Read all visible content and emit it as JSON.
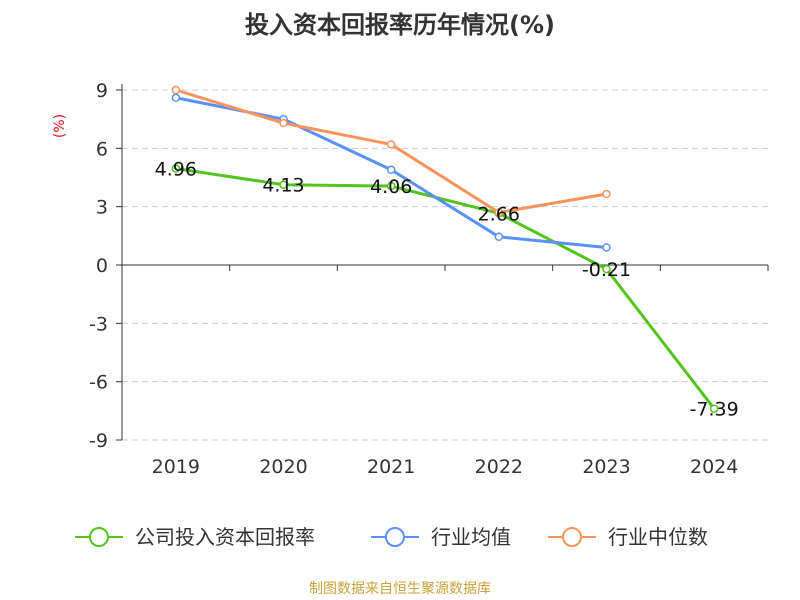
{
  "chart_data": {
    "type": "line",
    "title": "投入资本回报率历年情况(%)",
    "ylabel": "(%)",
    "ylim": [
      -9,
      9
    ],
    "yticks": [
      9,
      6,
      3,
      0,
      -3,
      -6,
      -9
    ],
    "categories": [
      "2019",
      "2020",
      "2021",
      "2022",
      "2023",
      "2024"
    ],
    "grid": true,
    "legend_position": "bottom",
    "series": [
      {
        "name": "公司投入资本回报率",
        "color": "#52c41a",
        "values": [
          4.96,
          4.13,
          4.06,
          2.66,
          -0.21,
          -7.39
        ],
        "labels": true
      },
      {
        "name": "行业均值",
        "color": "#5b8ff9",
        "values": [
          8.6,
          7.5,
          4.9,
          1.45,
          0.9,
          null
        ],
        "labels": false
      },
      {
        "name": "行业中位数",
        "color": "#f7945c",
        "values": [
          9.0,
          7.3,
          6.2,
          2.7,
          3.65,
          null
        ],
        "labels": false
      }
    ],
    "data_labels": [
      "4.96",
      "4.13",
      "4.06",
      "2.66",
      "-0.21",
      "-7.39"
    ],
    "source": "制图数据来自恒生聚源数据库",
    "colors": {
      "title": "#333333",
      "ylabel": "#e0141e",
      "source": "#c9a23a",
      "axis": "#333333",
      "grid": "#cccccc"
    }
  }
}
